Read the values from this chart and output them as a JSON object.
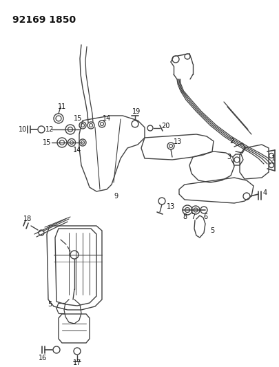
{
  "title": "92169 1850",
  "bg_color": "#ffffff",
  "line_color": "#404040",
  "label_color": "#111111",
  "label_fontsize": 7.0,
  "fig_width": 4.06,
  "fig_height": 5.33,
  "dpi": 100
}
